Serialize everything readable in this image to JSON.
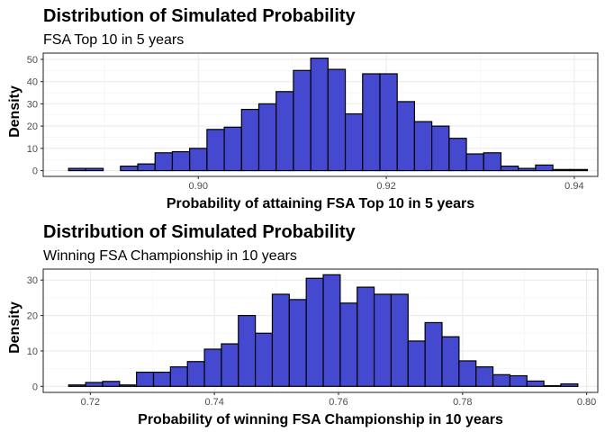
{
  "chart_data": [
    {
      "type": "histogram",
      "title": "Distribution of Simulated Probability",
      "subtitle": "FSA Top 10 in 5 years",
      "xlabel": "Probability of attaining FSA Top 10 in 5 years",
      "ylabel": "Density",
      "xlim": [
        0.8835,
        0.9425
      ],
      "ylim": [
        -2.6,
        52.8
      ],
      "x_ticks": [
        0.9,
        0.92,
        0.94
      ],
      "x_tick_labels": [
        "0.90",
        "0.92",
        "0.94"
      ],
      "y_ticks": [
        0,
        10,
        20,
        30,
        40,
        50
      ],
      "y_tick_labels": [
        "0",
        "10",
        "20",
        "30",
        "40",
        "50"
      ],
      "bin_start": 0.8862,
      "bin_width": 0.00184,
      "values": [
        1,
        1,
        0,
        2,
        3,
        8,
        8.5,
        10,
        18.5,
        19.5,
        27.5,
        30,
        35.5,
        45,
        50.5,
        45.5,
        25.5,
        43.5,
        43.5,
        31,
        22,
        20,
        14.5,
        7.5,
        8,
        2,
        1,
        2.5,
        0.5,
        0.5
      ],
      "bar_fill": "#4549CF",
      "bar_stroke": "#000000",
      "grid": true
    },
    {
      "type": "histogram",
      "title": "Distribution of Simulated Probability",
      "subtitle": "Winning FSA Championship in 10 years",
      "xlabel": "Probability of winning FSA Championship in 10 years",
      "ylabel": "Density",
      "xlim": [
        0.7124,
        0.8018
      ],
      "ylim": [
        -1.7,
        33.1
      ],
      "x_ticks": [
        0.72,
        0.74,
        0.76,
        0.78,
        0.8
      ],
      "x_tick_labels": [
        "0.72",
        "0.74",
        "0.76",
        "0.78",
        "0.80"
      ],
      "y_ticks": [
        0,
        10,
        20,
        30
      ],
      "y_tick_labels": [
        "0",
        "10",
        "20",
        "30"
      ],
      "bin_start": 0.7165,
      "bin_width": 0.002736,
      "values": [
        0.4,
        1.1,
        1.4,
        0.4,
        4,
        4,
        5.5,
        7,
        10.5,
        12,
        20,
        15,
        26,
        24.5,
        30.5,
        31.5,
        23.5,
        28,
        26,
        26,
        12.8,
        18,
        14,
        7.2,
        5.5,
        3.3,
        3,
        1.5,
        0.2,
        0.7
      ],
      "bar_fill": "#4549CF",
      "bar_stroke": "#000000",
      "grid": true
    }
  ]
}
